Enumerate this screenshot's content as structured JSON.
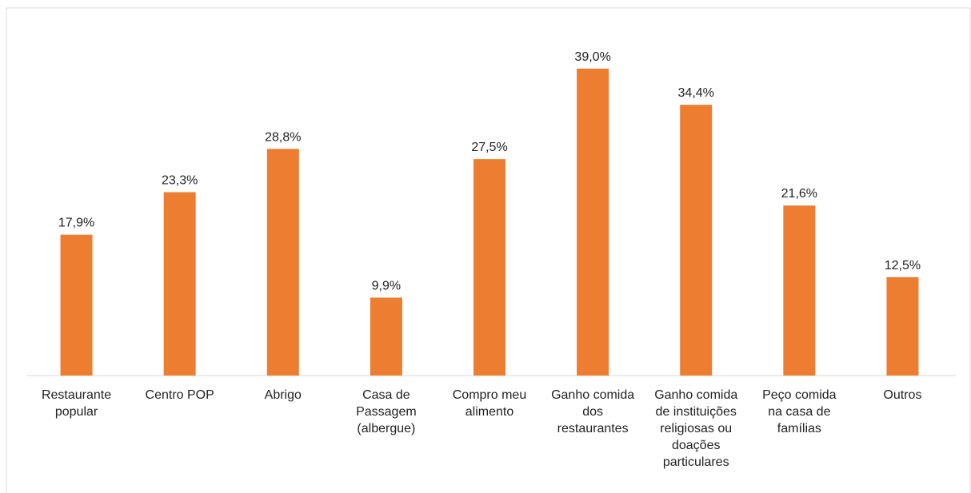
{
  "chart_data": {
    "type": "bar",
    "categories": [
      "Restaurante popular",
      "Centro POP",
      "Abrigo",
      "Casa de Passagem (albergue)",
      "Compro meu alimento",
      "Ganho comida dos restaurantes",
      "Ganho comida de instituições religiosas ou doações particulares",
      "Peço comida na casa de famílias",
      "Outros"
    ],
    "values": [
      17.9,
      23.3,
      28.8,
      9.9,
      27.5,
      39.0,
      34.4,
      21.6,
      12.5
    ],
    "value_labels": [
      "17,9%",
      "23,3%",
      "28,8%",
      "9,9%",
      "27,5%",
      "39,0%",
      "34,4%",
      "21,6%",
      "12,5%"
    ],
    "color": "#ed7d31"
  }
}
